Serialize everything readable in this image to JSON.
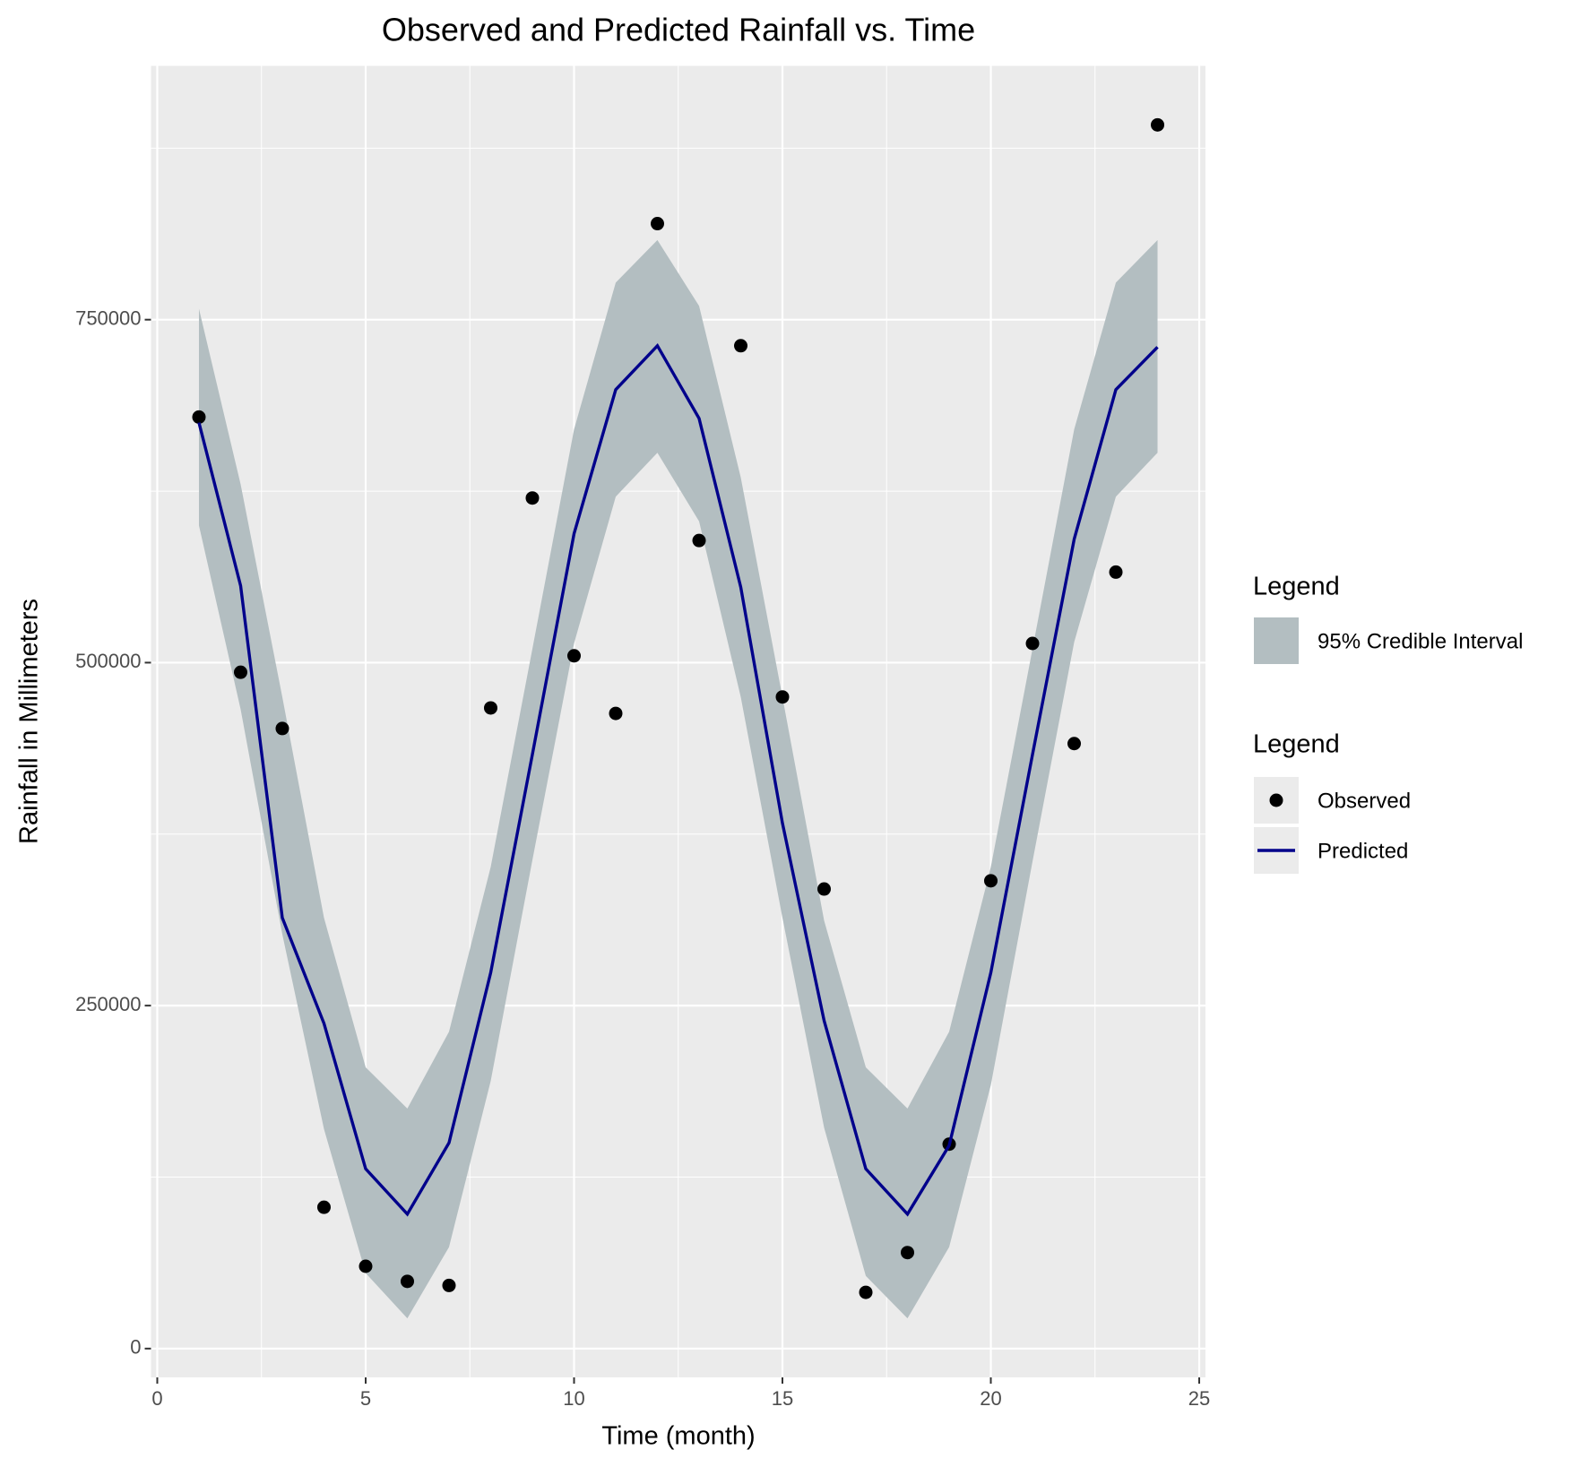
{
  "chart_data": {
    "type": "line",
    "title": "Observed and Predicted Rainfall vs. Time",
    "x_label": "Time (month)",
    "y_label": "Rainfall in Millimeters",
    "x": [
      1,
      2,
      3,
      4,
      5,
      6,
      7,
      8,
      9,
      10,
      11,
      12,
      13,
      14,
      15,
      16,
      17,
      18,
      19,
      20,
      21,
      22,
      23,
      24
    ],
    "series": [
      {
        "name": "95% Credible Interval",
        "mark": "ribbon",
        "color": "#b3bec1",
        "upper": [
          758000,
          630000,
          475000,
          314000,
          205000,
          175000,
          231000,
          351000,
          510000,
          670000,
          777000,
          808000,
          760000,
          635000,
          475000,
          312000,
          205000,
          175000,
          231000,
          351000,
          510000,
          670000,
          777000,
          808000
        ],
        "lower": [
          600000,
          466000,
          302000,
          160000,
          55000,
          22000,
          74000,
          195000,
          356000,
          514000,
          621000,
          653000,
          603000,
          475000,
          314000,
          161000,
          53000,
          22000,
          74000,
          192000,
          355000,
          515000,
          621000,
          653000
        ]
      },
      {
        "name": "Observed",
        "mark": "point",
        "color": "#000000",
        "values": [
          679000,
          493000,
          452000,
          103000,
          60000,
          49000,
          46000,
          467000,
          620000,
          505000,
          463000,
          820000,
          589000,
          731000,
          475000,
          335000,
          41000,
          70000,
          149000,
          341000,
          514000,
          441000,
          566000,
          892000
        ]
      },
      {
        "name": "Predicted",
        "mark": "line",
        "color": "#00008b",
        "values": [
          675000,
          556000,
          314000,
          237000,
          131000,
          98000,
          150000,
          274000,
          433000,
          594000,
          699000,
          731000,
          678000,
          555000,
          383000,
          239000,
          131000,
          98000,
          148000,
          274000,
          433000,
          590000,
          699000,
          730000
        ]
      }
    ],
    "legend_titles": [
      "Legend",
      "Legend"
    ],
    "xlim": [
      -0.15,
      25.15
    ],
    "xticks": [
      0,
      5,
      10,
      15,
      20,
      25
    ],
    "ylim": [
      -21000,
      935000
    ],
    "yticks": [
      0,
      250000,
      500000,
      750000
    ],
    "grid": true,
    "legend": "right"
  }
}
